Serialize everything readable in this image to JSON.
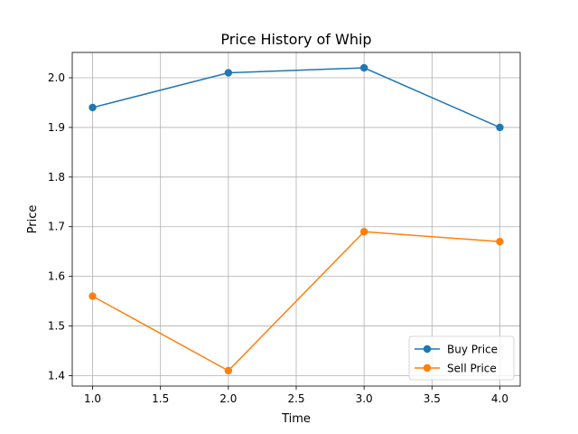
{
  "chart_data": {
    "type": "line",
    "title": "Price History of Whip",
    "xlabel": "Time",
    "ylabel": "Price",
    "xlim": [
      0.85,
      4.15
    ],
    "ylim": [
      1.379,
      2.051
    ],
    "x_ticks": [
      1.0,
      1.5,
      2.0,
      2.5,
      3.0,
      3.5,
      4.0
    ],
    "y_ticks": [
      1.4,
      1.5,
      1.6,
      1.7,
      1.8,
      1.9,
      2.0
    ],
    "grid": true,
    "legend_position": "lower-right",
    "x": [
      1,
      2,
      3,
      4
    ],
    "series": [
      {
        "name": "Buy Price",
        "color": "#1f77b4",
        "values": [
          1.94,
          2.01,
          2.02,
          1.9
        ]
      },
      {
        "name": "Sell Price",
        "color": "#ff7f0e",
        "values": [
          1.56,
          1.41,
          1.69,
          1.67
        ]
      }
    ]
  }
}
